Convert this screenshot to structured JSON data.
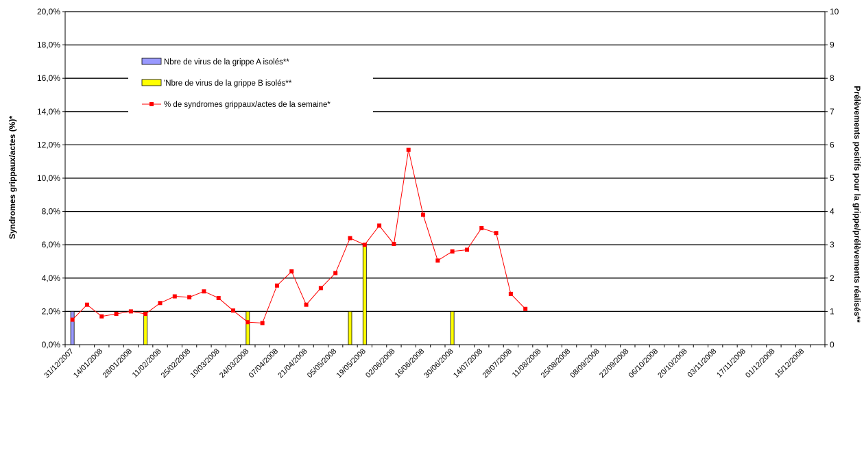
{
  "chart_data": {
    "type": "bar+line",
    "title": "",
    "y_left_label": "Syndromes grippaux/actes (%)*",
    "y_right_label": "Prélèvements positifs pour la grippe/prélèvements réalisés**",
    "y_left_ticks": [
      "0,0%",
      "2,0%",
      "4,0%",
      "6,0%",
      "8,0%",
      "10,0%",
      "12,0%",
      "14,0%",
      "16,0%",
      "18,0%",
      "20,0%"
    ],
    "y_right_ticks": [
      "0",
      "1",
      "2",
      "3",
      "4",
      "5",
      "6",
      "7",
      "8",
      "9",
      "10"
    ],
    "ylim_left": [
      0,
      20
    ],
    "ylim_right": [
      0,
      10
    ],
    "grid": true,
    "x_tick_labels": [
      "31/12/2007",
      "14/01/2008",
      "28/01/2008",
      "11/02/2008",
      "25/02/2008",
      "10/03/2008",
      "24/03/2008",
      "07/04/2008",
      "21/04/2008",
      "05/05/2008",
      "19/05/2008",
      "02/06/2008",
      "16/06/2008",
      "30/06/2008",
      "14/07/2008",
      "28/07/2008",
      "11/08/2008",
      "25/08/2008",
      "08/09/2008",
      "22/09/2008",
      "06/10/2008",
      "20/10/2008",
      "03/11/2008",
      "17/11/2008",
      "01/12/2008",
      "15/12/2008"
    ],
    "week_count": 52,
    "legend": [
      {
        "label": "Nbre de virus de la grippe A  isolés**",
        "color": "#9999ff",
        "kind": "bar"
      },
      {
        "label": "'Nbre de virus de la grippe B isolés**",
        "color": "#ffff00",
        "kind": "bar"
      },
      {
        "label": "% de syndromes grippaux/actes de la semaine*",
        "color": "#ff0000",
        "kind": "line"
      }
    ],
    "series": [
      {
        "name": "Nbre de virus de la grippe A  isolés**",
        "axis": "right",
        "kind": "bar",
        "color": "#9999ff",
        "points": [
          {
            "week": 1,
            "value": 1
          }
        ]
      },
      {
        "name": "'Nbre de virus de la grippe B isolés**",
        "axis": "right",
        "kind": "bar",
        "color": "#ffff00",
        "points": [
          {
            "week": 6,
            "value": 1
          },
          {
            "week": 13,
            "value": 1
          },
          {
            "week": 20,
            "value": 1
          },
          {
            "week": 21,
            "value": 3
          },
          {
            "week": 27,
            "value": 1
          }
        ]
      },
      {
        "name": "% de syndromes grippaux/actes de la semaine*",
        "axis": "left",
        "kind": "line",
        "color": "#ff0000",
        "values": [
          1.5,
          2.4,
          1.7,
          1.85,
          2.0,
          1.85,
          2.5,
          2.9,
          2.85,
          3.2,
          2.8,
          2.05,
          1.35,
          1.3,
          3.55,
          4.4,
          2.4,
          3.4,
          4.3,
          6.4,
          6.0,
          7.15,
          6.05,
          11.7,
          7.8,
          5.05,
          5.6,
          5.7,
          7.0,
          6.7,
          3.05,
          2.15
        ]
      }
    ]
  }
}
